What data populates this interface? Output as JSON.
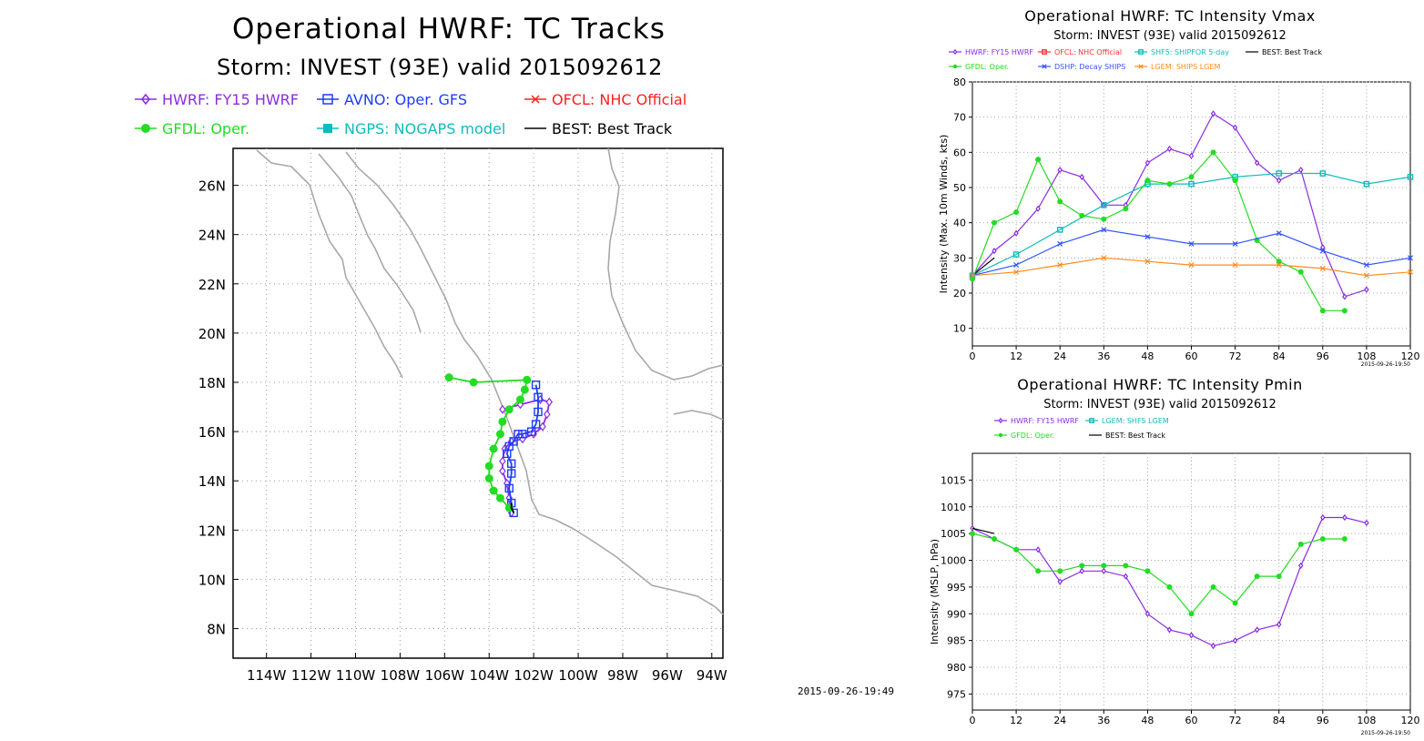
{
  "chart_data": [
    {
      "type": "line",
      "id": "tracks",
      "title": "Operational HWRF: TC Tracks",
      "subtitle": "Storm: INVEST (93E) valid 2015092612",
      "x_tick_labels": [
        "114W",
        "112W",
        "110W",
        "108W",
        "106W",
        "104W",
        "102W",
        "100W",
        "98W",
        "96W",
        "94W"
      ],
      "y_tick_labels": [
        "8N",
        "10N",
        "12N",
        "14N",
        "16N",
        "18N",
        "20N",
        "22N",
        "24N",
        "26N"
      ],
      "lon_range": [
        -115.5,
        -93.5
      ],
      "lat_range": [
        6.8,
        27.5
      ],
      "grid": true,
      "timestamp": "2015-09-26-19:49",
      "series": [
        {
          "name": "HWRF: FY15 HWRF",
          "color": "#8a2be2",
          "marker": "diamond",
          "lat": [
            12.7,
            13.3,
            13.9,
            14.4,
            14.8,
            15.3,
            15.6,
            15.7,
            15.9,
            16.2,
            16.7,
            17.2,
            17.3,
            17.1,
            16.9
          ],
          "lon": [
            -103.0,
            -103.1,
            -103.2,
            -103.4,
            -103.4,
            -103.3,
            -103.0,
            -102.5,
            -102.0,
            -101.6,
            -101.4,
            -101.3,
            -101.7,
            -102.6,
            -103.4
          ]
        },
        {
          "name": "AVNO: Oper. GFS",
          "color": "#1e3cff",
          "marker": "square",
          "lat": [
            12.7,
            13.1,
            13.7,
            14.3,
            14.7,
            15.1,
            15.4,
            15.6,
            15.9,
            15.9,
            16.0,
            16.3,
            16.8,
            17.4,
            17.9
          ],
          "lon": [
            -102.9,
            -103.0,
            -103.1,
            -103.0,
            -103.0,
            -103.2,
            -103.1,
            -102.9,
            -102.7,
            -102.5,
            -102.1,
            -101.9,
            -101.8,
            -101.8,
            -101.9
          ]
        },
        {
          "name": "OFCL: NHC Official",
          "color": "#ff2020",
          "marker": "x",
          "lat": [],
          "lon": []
        },
        {
          "name": "GFDL: Oper.",
          "color": "#22dd22",
          "marker": "circle",
          "lat": [
            12.9,
            13.3,
            13.6,
            14.1,
            14.6,
            15.3,
            15.9,
            16.4,
            16.9,
            17.3,
            17.7,
            18.1,
            18.0,
            18.2
          ],
          "lon": [
            -103.1,
            -103.5,
            -103.8,
            -104.0,
            -104.0,
            -103.8,
            -103.5,
            -103.4,
            -103.1,
            -102.6,
            -102.4,
            -102.3,
            -104.7,
            -105.8
          ]
        },
        {
          "name": "NGPS: NOGAPS model",
          "color": "#11bbbb",
          "marker": "square",
          "lat": [],
          "lon": []
        },
        {
          "name": "BEST: Best Track",
          "color": "#000000",
          "marker": "none",
          "lat": [
            12.7,
            12.9,
            13.1
          ],
          "lon": [
            -102.9,
            -103.0,
            -103.0
          ]
        }
      ]
    },
    {
      "type": "line",
      "id": "vmax",
      "title": "Operational HWRF: TC Intensity Vmax",
      "subtitle": "Storm: INVEST (93E) valid 2015092612",
      "xlabel": "",
      "ylabel": "Intensity (Max. 10m Winds, kts)",
      "xlim": [
        0,
        120
      ],
      "ylim": [
        5,
        80
      ],
      "x_ticks": [
        0,
        12,
        24,
        36,
        48,
        60,
        72,
        84,
        96,
        108,
        120
      ],
      "y_ticks": [
        10,
        20,
        30,
        40,
        50,
        60,
        70,
        80
      ],
      "grid": true,
      "timestamp": "2015-09-26-19:50",
      "series": [
        {
          "name": "HWRF: FY15 HWRF",
          "color": "#8a2be2",
          "marker": "diamond",
          "x": [
            0,
            6,
            12,
            18,
            24,
            30,
            36,
            42,
            48,
            54,
            60,
            66,
            72,
            78,
            84,
            90,
            96,
            102,
            108
          ],
          "y": [
            25,
            32,
            37,
            44,
            55,
            53,
            45,
            45,
            57,
            61,
            59,
            71,
            67,
            57,
            52,
            55,
            33,
            19,
            21
          ]
        },
        {
          "name": "OFCL: NHC Official",
          "color": "#ff3030",
          "marker": "square",
          "x": [],
          "y": []
        },
        {
          "name": "SHF5: SHIPFOR 5-day",
          "color": "#11bbbb",
          "marker": "square",
          "x": [
            0,
            12,
            24,
            36,
            48,
            60,
            72,
            84,
            96,
            108,
            120
          ],
          "y": [
            25,
            31,
            38,
            45,
            51,
            51,
            53,
            54,
            54,
            51,
            53
          ]
        },
        {
          "name": "BEST: Best Track",
          "color": "#000000",
          "marker": "none",
          "x": [
            0,
            6
          ],
          "y": [
            25,
            30
          ]
        },
        {
          "name": "GFDL: Oper.",
          "color": "#22dd22",
          "marker": "circle",
          "x": [
            0,
            6,
            12,
            18,
            24,
            30,
            36,
            42,
            48,
            54,
            60,
            66,
            72,
            78,
            84,
            90,
            96,
            102
          ],
          "y": [
            24,
            40,
            43,
            58,
            46,
            42,
            41,
            44,
            52,
            51,
            53,
            60,
            52,
            35,
            29,
            26,
            15,
            15
          ]
        },
        {
          "name": "DSHP: Decay SHIPS",
          "color": "#3355ff",
          "marker": "x",
          "x": [
            0,
            12,
            24,
            36,
            48,
            60,
            72,
            84,
            96,
            108,
            120
          ],
          "y": [
            25,
            28,
            34,
            38,
            36,
            34,
            34,
            37,
            32,
            28,
            30
          ]
        },
        {
          "name": "LGEM: SHIPS LGEM",
          "color": "#ff8c20",
          "marker": "x",
          "x": [
            0,
            12,
            24,
            36,
            48,
            60,
            72,
            84,
            96,
            108,
            120
          ],
          "y": [
            25,
            26,
            28,
            30,
            29,
            28,
            28,
            28,
            27,
            25,
            26
          ]
        }
      ]
    },
    {
      "type": "line",
      "id": "pmin",
      "title": "Operational HWRF: TC Intensity Pmin",
      "subtitle": "Storm: INVEST (93E) valid 2015092612",
      "ylabel": "Intensity (MSLP, hPa)",
      "xlim": [
        0,
        120
      ],
      "ylim": [
        972,
        1020
      ],
      "x_ticks": [
        0,
        12,
        24,
        36,
        48,
        60,
        72,
        84,
        96,
        108,
        120
      ],
      "y_ticks": [
        975,
        980,
        985,
        990,
        995,
        1000,
        1005,
        1010,
        1015
      ],
      "grid": true,
      "timestamp": "2015-09-26-19:50",
      "series": [
        {
          "name": "HWRF: FY15 HWRF",
          "color": "#8a2be2",
          "marker": "diamond",
          "x": [
            0,
            6,
            12,
            18,
            24,
            30,
            36,
            42,
            48,
            54,
            60,
            66,
            72,
            78,
            84,
            90,
            96,
            102,
            108
          ],
          "y": [
            1006,
            1004,
            1002,
            1002,
            996,
            998,
            998,
            997,
            990,
            987,
            986,
            984,
            985,
            987,
            988,
            999,
            1008,
            1008,
            1007
          ]
        },
        {
          "name": "LGEM: SHF5 LGEM",
          "color": "#11bbbb",
          "marker": "square",
          "x": [],
          "y": []
        },
        {
          "name": "GFDL: Oper.",
          "color": "#22dd22",
          "marker": "circle",
          "x": [
            0,
            6,
            12,
            18,
            24,
            30,
            36,
            42,
            48,
            54,
            60,
            66,
            72,
            78,
            84,
            90,
            96,
            102
          ],
          "y": [
            1005,
            1004,
            1002,
            998,
            998,
            999,
            999,
            999,
            998,
            995,
            990,
            995,
            992,
            997,
            997,
            1003,
            1004,
            1004
          ]
        },
        {
          "name": "BEST: Best Track",
          "color": "#000000",
          "marker": "none",
          "x": [
            0,
            6
          ],
          "y": [
            1006,
            1005
          ]
        }
      ]
    }
  ]
}
